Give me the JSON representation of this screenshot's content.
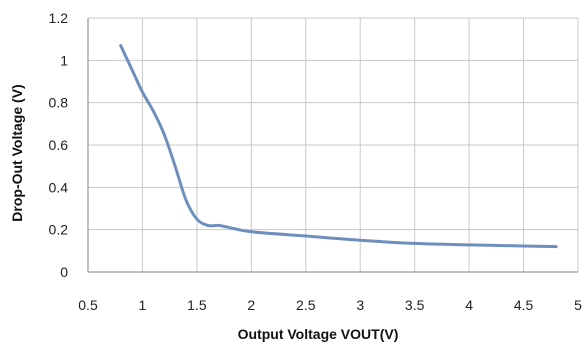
{
  "chart_data": {
    "type": "line",
    "title": "",
    "xlabel": "Output Voltage VOUT(V)",
    "ylabel": "Drop-Out Voltage (V)",
    "xlim": [
      0.5,
      5
    ],
    "ylim": [
      0,
      1.2
    ],
    "xticks": [
      0.5,
      1,
      1.5,
      2,
      2.5,
      3,
      3.5,
      4,
      4.5,
      5
    ],
    "xtick_labels": [
      "0.5",
      "1",
      "1.5",
      "2",
      "2.5",
      "3",
      "3.5",
      "4",
      "4.5",
      "5"
    ],
    "yticks": [
      0,
      0.2,
      0.4,
      0.6,
      0.8,
      1,
      1.2
    ],
    "ytick_labels": [
      "0",
      "0.2",
      "0.4",
      "0.6",
      "0.8",
      "1",
      "1.2"
    ],
    "grid": true,
    "legend": "none",
    "series": [
      {
        "color": "#6e8fbd",
        "x": [
          0.8,
          0.9,
          1.0,
          1.1,
          1.2,
          1.3,
          1.4,
          1.5,
          1.6,
          1.7,
          1.8,
          2.0,
          2.5,
          3.0,
          3.5,
          4.0,
          4.5,
          4.8
        ],
        "y": [
          1.07,
          0.96,
          0.85,
          0.76,
          0.65,
          0.5,
          0.34,
          0.25,
          0.22,
          0.22,
          0.21,
          0.19,
          0.17,
          0.15,
          0.135,
          0.128,
          0.123,
          0.12
        ]
      }
    ]
  }
}
